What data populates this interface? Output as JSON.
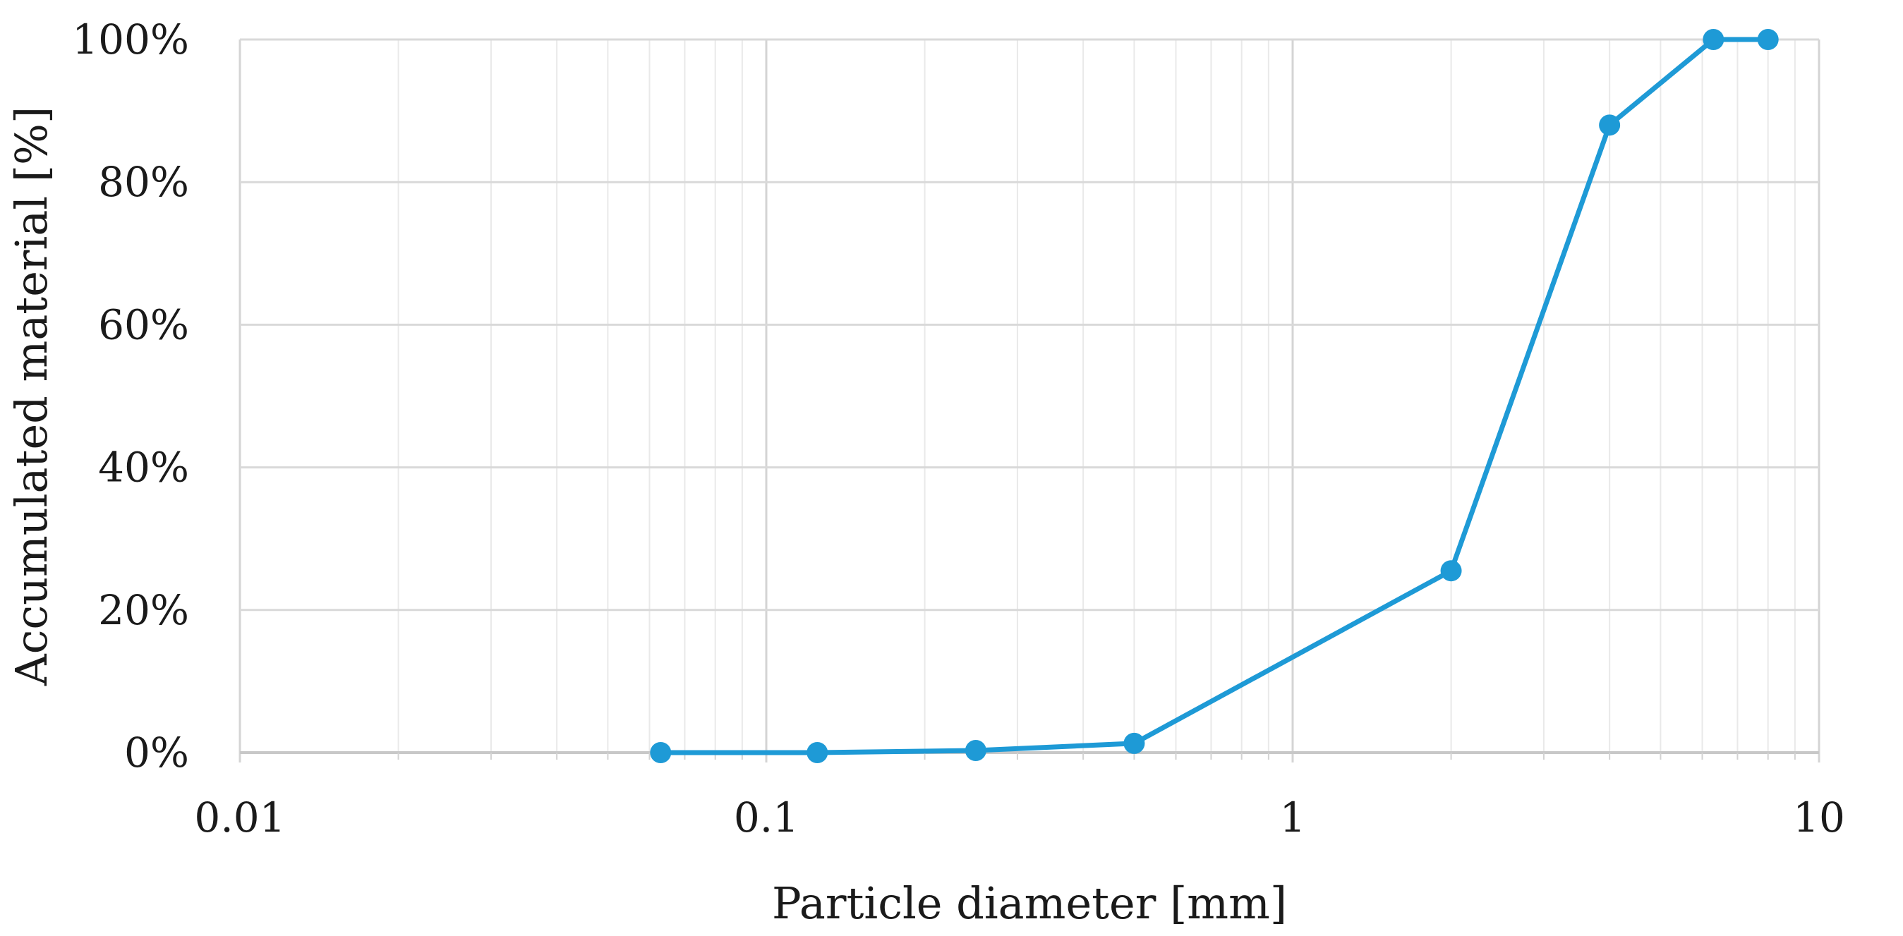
{
  "chart_data": {
    "type": "line",
    "title": "",
    "xlabel": "Particle diameter [mm]",
    "ylabel": "Accumulated material [%]",
    "x_scale": "log",
    "xlim": [
      0.01,
      10
    ],
    "ylim": [
      0,
      100
    ],
    "x_ticks": [
      "0.01",
      "0.1",
      "1",
      "10"
    ],
    "y_ticks": [
      "0%",
      "20%",
      "40%",
      "60%",
      "80%",
      "100%"
    ],
    "grid": true,
    "legend": "none",
    "series": [
      {
        "color": "#1e9ad6",
        "x": [
          0.063,
          0.125,
          0.25,
          0.5,
          2,
          4,
          6.3,
          8
        ],
        "y": [
          0,
          0,
          0.3,
          1.3,
          25.5,
          88,
          100,
          100
        ]
      }
    ]
  }
}
